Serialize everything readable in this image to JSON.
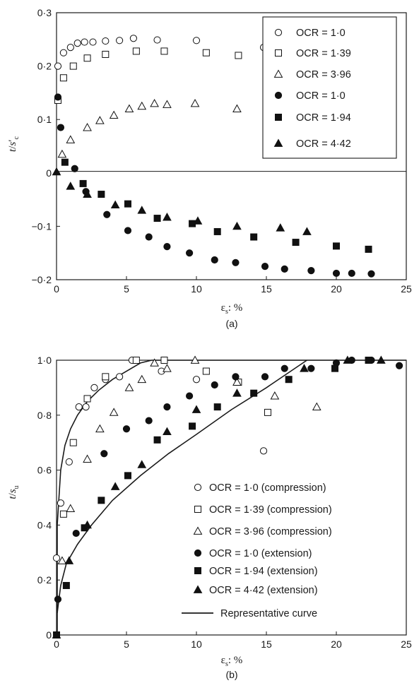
{
  "chart_data": [
    {
      "id": "a",
      "type": "scatter",
      "caption": "(a)",
      "xlabel": "ε_s: %",
      "ylabel": "t/s′_c",
      "xlim": [
        0,
        25
      ],
      "ylim": [
        -0.2,
        0.3
      ],
      "xticks": [
        0,
        5,
        10,
        15,
        20,
        25
      ],
      "xtick_labels": [
        "0",
        "5",
        "10",
        "15",
        "20",
        "25"
      ],
      "yticks": [
        -0.2,
        -0.1,
        0,
        0.1,
        0.2,
        0.3
      ],
      "ytick_labels": [
        "−0·2",
        "−0·1",
        "0",
        "0·1",
        "0·2",
        "0·3"
      ],
      "grid": false,
      "legend_position": "top-right",
      "series": [
        {
          "name": "OCR = 1·0",
          "marker": "circle-open",
          "x": [
            0.1,
            0.5,
            1.0,
            1.5,
            2.0,
            2.6,
            3.5,
            4.5,
            5.5,
            7.2,
            10.0,
            14.8
          ],
          "y": [
            0.2,
            0.225,
            0.235,
            0.243,
            0.245,
            0.245,
            0.247,
            0.248,
            0.252,
            0.249,
            0.248,
            0.235
          ]
        },
        {
          "name": "OCR = 1·39",
          "marker": "square-open",
          "x": [
            0.1,
            0.5,
            1.2,
            2.2,
            3.5,
            5.7,
            7.7,
            10.7,
            13.0
          ],
          "y": [
            0.136,
            0.178,
            0.2,
            0.215,
            0.222,
            0.228,
            0.228,
            0.225,
            0.22
          ]
        },
        {
          "name": "OCR = 3·96",
          "marker": "triangle-open",
          "x": [
            0.4,
            1.0,
            2.2,
            3.1,
            4.1,
            5.2,
            6.1,
            7.0,
            7.9,
            9.9,
            12.9
          ],
          "y": [
            0.035,
            0.062,
            0.085,
            0.098,
            0.108,
            0.12,
            0.125,
            0.13,
            0.128,
            0.13,
            0.12
          ]
        },
        {
          "name": "OCR = 1·0",
          "marker": "circle-filled",
          "x": [
            0.1,
            0.3,
            1.3,
            2.1,
            3.6,
            5.1,
            6.6,
            7.9,
            9.5,
            11.3,
            12.8,
            14.9,
            16.3,
            18.2,
            20.0,
            21.1,
            22.5
          ],
          "y": [
            0.142,
            0.085,
            0.008,
            -0.035,
            -0.078,
            -0.108,
            -0.12,
            -0.138,
            -0.15,
            -0.163,
            -0.168,
            -0.175,
            -0.18,
            -0.183,
            -0.188,
            -0.188,
            -0.189
          ]
        },
        {
          "name": "OCR = 1·94",
          "marker": "square-filled",
          "x": [
            0.6,
            1.9,
            3.2,
            5.1,
            7.2,
            9.7,
            11.5,
            14.1,
            17.1,
            20.0,
            22.3
          ],
          "y": [
            0.02,
            -0.02,
            -0.04,
            -0.058,
            -0.085,
            -0.095,
            -0.11,
            -0.12,
            -0.13,
            -0.137,
            -0.143
          ]
        },
        {
          "name": "OCR = 4·42",
          "marker": "triangle-filled",
          "x": [
            0.0,
            1.0,
            2.2,
            4.2,
            6.1,
            7.9,
            10.1,
            12.9,
            16.0,
            17.9
          ],
          "y": [
            0.002,
            -0.025,
            -0.04,
            -0.06,
            -0.07,
            -0.083,
            -0.09,
            -0.1,
            -0.103,
            -0.11
          ]
        }
      ]
    },
    {
      "id": "b",
      "type": "scatter",
      "caption": "(b)",
      "xlabel": "ε_s: %",
      "ylabel": "t/s_u",
      "xlim": [
        0,
        25
      ],
      "ylim": [
        0,
        1.0
      ],
      "xticks": [
        0,
        5,
        10,
        15,
        20,
        25
      ],
      "xtick_labels": [
        "0",
        "5",
        "10",
        "15",
        "20",
        "25"
      ],
      "yticks": [
        0,
        0.2,
        0.4,
        0.6,
        0.8,
        1.0
      ],
      "ytick_labels": [
        "0",
        "0·2",
        "0·4",
        "0·6",
        "0·8",
        "1·0"
      ],
      "grid": false,
      "legend_position": "bottom-right",
      "series": [
        {
          "name": "OCR = 1·0 (compression)",
          "marker": "circle-open",
          "x": [
            0.0,
            0.3,
            0.9,
            1.6,
            2.1,
            2.7,
            3.5,
            4.5,
            5.4,
            7.5,
            10.0,
            14.8
          ],
          "y": [
            0.28,
            0.48,
            0.63,
            0.83,
            0.83,
            0.9,
            0.93,
            0.94,
            1.0,
            0.96,
            0.93,
            0.67
          ]
        },
        {
          "name": "OCR = 1·39 (compression)",
          "marker": "square-open",
          "x": [
            0.0,
            0.5,
            1.2,
            2.2,
            3.5,
            5.7,
            7.7,
            10.7,
            13.0,
            15.1
          ],
          "y": [
            0.0,
            0.44,
            0.7,
            0.86,
            0.94,
            1.0,
            1.0,
            0.96,
            0.92,
            0.81
          ]
        },
        {
          "name": "OCR = 3·96 (compression)",
          "marker": "triangle-open",
          "x": [
            0.4,
            1.0,
            2.2,
            3.1,
            4.1,
            5.2,
            6.1,
            7.0,
            7.9,
            9.9,
            12.9,
            15.6,
            18.6
          ],
          "y": [
            0.27,
            0.46,
            0.64,
            0.75,
            0.81,
            0.9,
            0.93,
            0.99,
            0.97,
            1.0,
            0.92,
            0.87,
            0.83
          ]
        },
        {
          "name": "OCR = 1·0 (extension)",
          "marker": "circle-filled",
          "x": [
            0.1,
            1.4,
            3.4,
            5.0,
            6.6,
            7.9,
            9.5,
            11.3,
            12.8,
            14.9,
            16.3,
            18.2,
            20.0,
            21.1,
            22.5,
            24.5
          ],
          "y": [
            0.13,
            0.37,
            0.66,
            0.75,
            0.78,
            0.83,
            0.87,
            0.91,
            0.94,
            0.94,
            0.97,
            0.97,
            0.99,
            1.0,
            1.0,
            0.98
          ]
        },
        {
          "name": "OCR = 1·94 (extension)",
          "marker": "square-filled",
          "x": [
            0.0,
            0.7,
            2.0,
            3.2,
            5.1,
            7.2,
            9.7,
            11.5,
            14.1,
            16.6,
            19.9,
            22.3
          ],
          "y": [
            0.0,
            0.18,
            0.39,
            0.49,
            0.58,
            0.71,
            0.76,
            0.83,
            0.88,
            0.93,
            0.97,
            1.0
          ]
        },
        {
          "name": "OCR = 4·42 (extension)",
          "marker": "triangle-filled",
          "x": [
            0.0,
            0.9,
            2.2,
            4.2,
            6.1,
            7.9,
            10.0,
            12.9,
            17.7,
            20.8,
            23.2
          ],
          "y": [
            0.0,
            0.27,
            0.4,
            0.54,
            0.62,
            0.74,
            0.82,
            0.88,
            0.97,
            1.0,
            1.0
          ]
        },
        {
          "name": "Representative curve",
          "marker": "line",
          "x": [
            0.05,
            0.05,
            0.3,
            0.6,
            1.0,
            1.5,
            2.2,
            3.0,
            4.0,
            5.0,
            6.0,
            6.8
          ],
          "y": [
            0.0,
            0.4,
            0.6,
            0.69,
            0.75,
            0.8,
            0.85,
            0.89,
            0.93,
            0.96,
            0.99,
            1.0
          ]
        },
        {
          "name": "Representative curve",
          "marker": "line",
          "x": [
            0.05,
            0.3,
            0.7,
            1.5,
            2.5,
            4.0,
            6.0,
            8.0,
            10.0,
            12.5,
            15.0,
            17.9
          ],
          "y": [
            0.08,
            0.18,
            0.26,
            0.33,
            0.4,
            0.49,
            0.58,
            0.66,
            0.73,
            0.82,
            0.9,
            1.0
          ]
        },
        {
          "name": "Representative curve",
          "marker": "line",
          "x": [
            6.8,
            25.0
          ],
          "y": [
            1.0,
            1.0
          ]
        }
      ]
    }
  ]
}
